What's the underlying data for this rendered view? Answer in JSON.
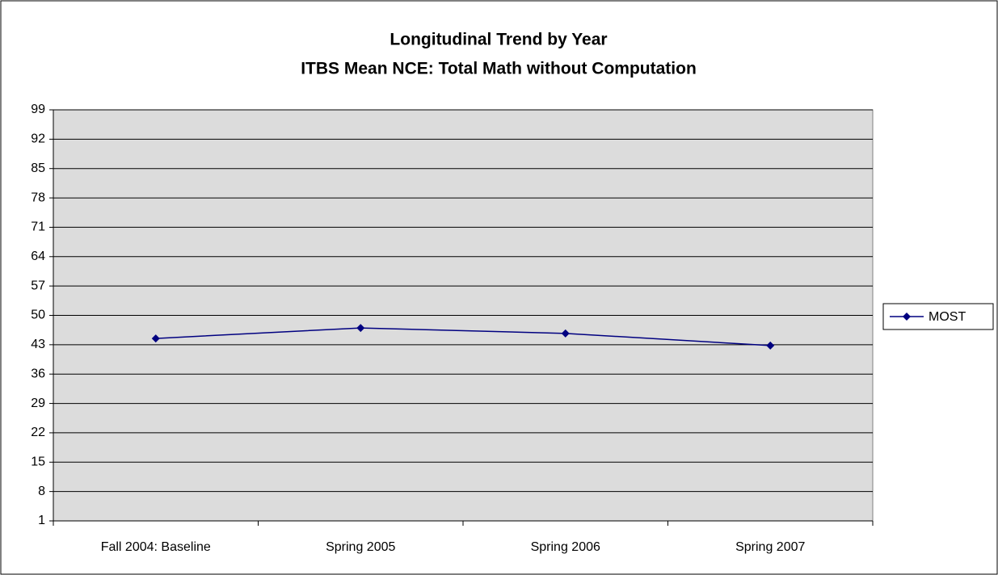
{
  "chart_data": {
    "type": "line",
    "title": "Longitudinal Trend by Year",
    "subtitle": "ITBS Mean NCE: Total Math without Computation",
    "categories": [
      "Fall 2004: Baseline",
      "Spring 2005",
      "Spring 2006",
      "Spring 2007"
    ],
    "series": [
      {
        "name": "MOST",
        "color": "#000080",
        "values": [
          44.5,
          47.0,
          45.7,
          42.8
        ]
      }
    ],
    "ylim": [
      1,
      99
    ],
    "yticks": [
      1,
      8,
      15,
      22,
      29,
      36,
      43,
      50,
      57,
      64,
      71,
      78,
      85,
      92,
      99
    ],
    "grid": true,
    "legend": "right"
  }
}
